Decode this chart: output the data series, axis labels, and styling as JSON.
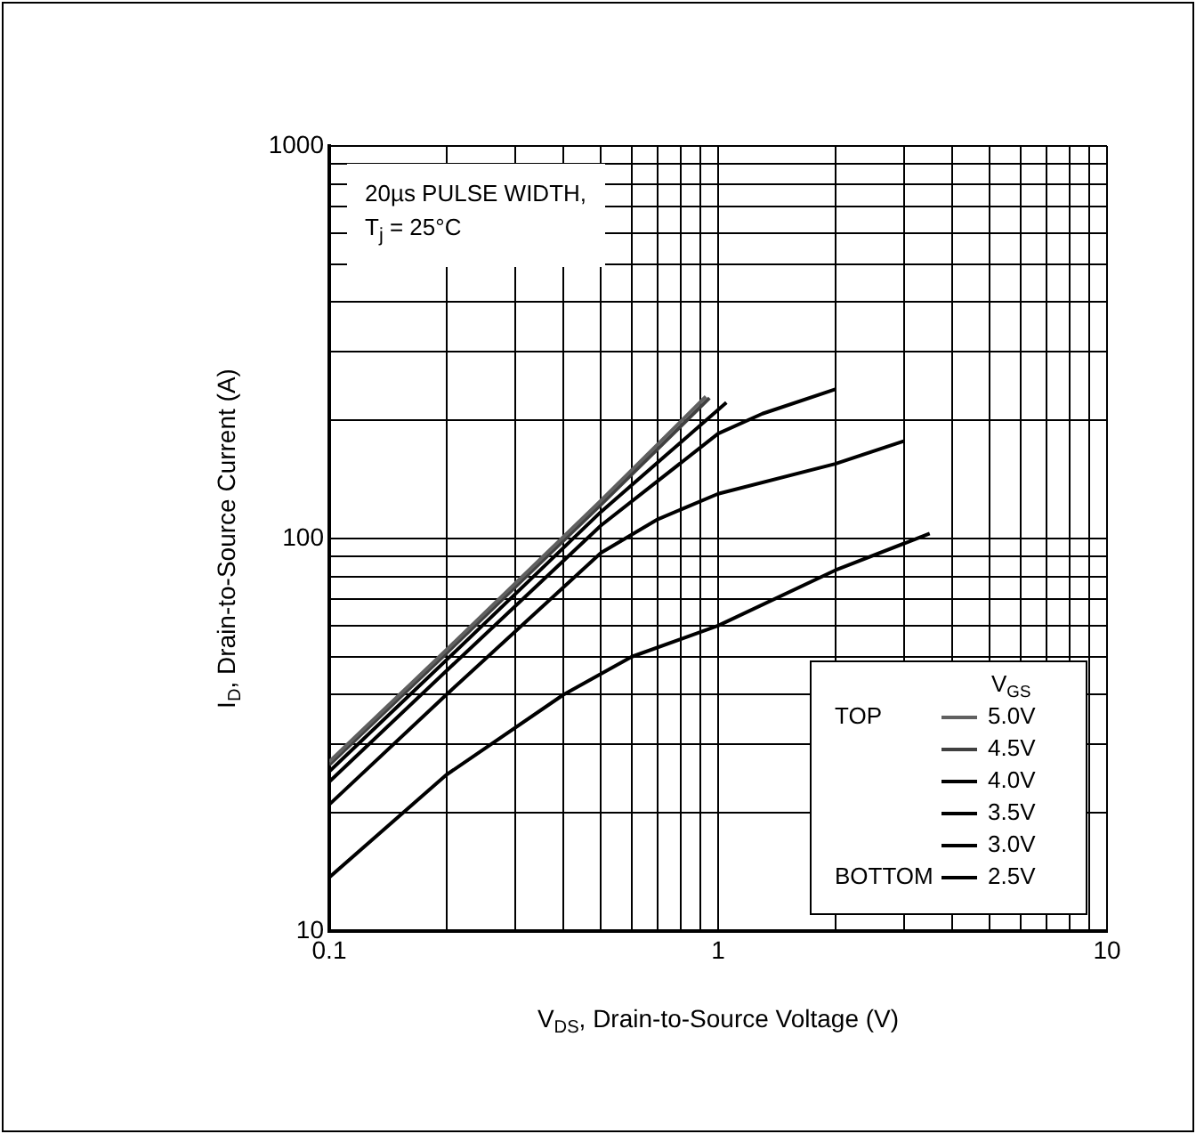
{
  "chart_data": {
    "type": "line",
    "xlabel": "V$_{DS}$, Drain-to-Source Voltage (V)",
    "ylabel": "I$_{D}$, Drain-to-Source Current (A)",
    "legend_title": "V$_{GS}$",
    "legend": "bottom right",
    "log": "xy",
    "grid": true,
    "marker": "none",
    "line_style": "solid",
    "xlim": [
      0.1,
      10
    ],
    "ylim": [
      10,
      1000
    ],
    "xticks": [
      0.1,
      {
        "value": 0.2,
        "label": null
      },
      {
        "value": 0.3,
        "label": null
      },
      {
        "value": 0.4,
        "label": null
      },
      {
        "value": 0.5,
        "label": null
      },
      {
        "value": 0.6,
        "label": null
      },
      {
        "value": 0.7,
        "label": null
      },
      {
        "value": 0.8,
        "label": null
      },
      {
        "value": 0.9,
        "label": null
      },
      1,
      {
        "value": 2,
        "label": null
      },
      {
        "value": 3,
        "label": null
      },
      {
        "value": 4,
        "label": null
      },
      {
        "value": 5,
        "label": null
      },
      {
        "value": 6,
        "label": null
      },
      {
        "value": 7,
        "label": null
      },
      {
        "value": 8,
        "label": null
      },
      {
        "value": 9,
        "label": null
      },
      10
    ],
    "yticks": [
      10,
      {
        "value": 20,
        "label": null
      },
      {
        "value": 30,
        "label": null
      },
      {
        "value": 40,
        "label": null
      },
      {
        "value": 50,
        "label": null
      },
      {
        "value": 60,
        "label": null
      },
      {
        "value": 70,
        "label": null
      },
      {
        "value": 80,
        "label": null
      },
      {
        "value": 90,
        "label": null
      },
      100,
      {
        "value": 200,
        "label": null
      },
      {
        "value": 300,
        "label": null
      },
      {
        "value": 400,
        "label": null
      },
      {
        "value": 500,
        "label": null
      },
      {
        "value": 600,
        "label": null
      },
      {
        "value": 700,
        "label": null
      },
      {
        "value": 800,
        "label": null
      },
      {
        "value": 900,
        "label": null
      },
      1000
    ],
    "annotations": [
      "20µs PULSE WIDTH,",
      "T$_{j}$ = 25°C",
      "TOP",
      "BOTTOM"
    ],
    "series": [
      {
        "name": "5.0V",
        "color": "#606060",
        "x": [
          0.1,
          0.2,
          0.5,
          0.93
        ],
        "values": [
          27,
          52,
          125,
          230
        ]
      },
      {
        "name": "4.5V",
        "color": "#404040",
        "x": [
          0.1,
          0.2,
          0.5,
          0.95
        ],
        "values": [
          26.5,
          51,
          122,
          228
        ]
      },
      {
        "name": "4.0V",
        "color": "#000000",
        "x": [
          0.1,
          0.2,
          0.5,
          1.05
        ],
        "values": [
          25.5,
          49,
          117,
          222
        ]
      },
      {
        "name": "3.5V",
        "color": "#000000",
        "x": [
          0.1,
          0.2,
          0.5,
          1,
          1.3,
          2
        ],
        "values": [
          24,
          46,
          108,
          185,
          208,
          240
        ]
      },
      {
        "name": "3.0V",
        "color": "#000000",
        "x": [
          0.1,
          0.2,
          0.5,
          0.7,
          1,
          2,
          3
        ],
        "values": [
          21,
          40,
          92,
          112,
          130,
          155,
          177
        ]
      },
      {
        "name": "2.5V",
        "color": "#000000",
        "x": [
          0.1,
          0.2,
          0.4,
          0.6,
          1,
          2,
          3.5
        ],
        "values": [
          13.7,
          25,
          40,
          50,
          60,
          83,
          103
        ]
      }
    ]
  }
}
